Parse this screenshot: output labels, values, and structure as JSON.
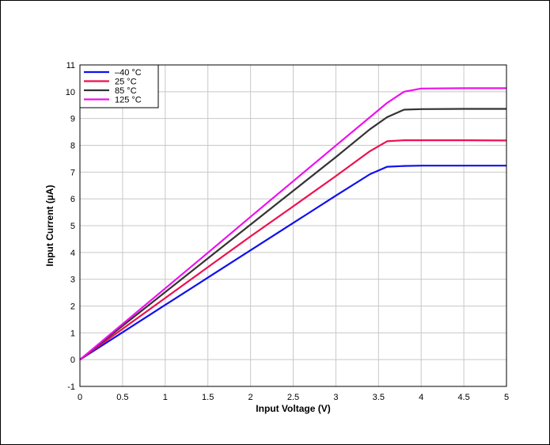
{
  "chart_data": {
    "type": "line",
    "title": "",
    "xlabel": "Input Voltage (V)",
    "ylabel": "Input Current (µA)",
    "xlim": [
      0,
      5
    ],
    "ylim": [
      -1,
      11
    ],
    "xticks": [
      0,
      0.5,
      1,
      1.5,
      2,
      2.5,
      3,
      3.5,
      4,
      4.5,
      5
    ],
    "xtick_labels": [
      "0",
      "0.5",
      "1",
      "1.5",
      "2",
      "2.5",
      "3",
      "3.5",
      "4",
      "4.5",
      "5"
    ],
    "yticks": [
      -1,
      0,
      1,
      2,
      3,
      4,
      5,
      6,
      7,
      8,
      9,
      10,
      11
    ],
    "ytick_labels": [
      "-1",
      "0",
      "1",
      "2",
      "3",
      "4",
      "5",
      "6",
      "7",
      "8",
      "9",
      "10",
      "11"
    ],
    "grid": true,
    "legend_position": "top-left",
    "series": [
      {
        "name": "–40 °C",
        "color": "#1010ee",
        "x": [
          0,
          0.5,
          1,
          1.5,
          2,
          2.5,
          3,
          3.4,
          3.6,
          3.8,
          4,
          4.5,
          5
        ],
        "y": [
          0,
          1.02,
          2.04,
          3.06,
          4.08,
          5.1,
          6.12,
          6.92,
          7.2,
          7.23,
          7.24,
          7.24,
          7.24
        ]
      },
      {
        "name": "25 °C",
        "color": "#ee1050",
        "x": [
          0,
          0.5,
          1,
          1.5,
          2,
          2.5,
          3,
          3.4,
          3.6,
          3.8,
          4,
          4.5,
          5
        ],
        "y": [
          0,
          1.15,
          2.3,
          3.45,
          4.6,
          5.72,
          6.85,
          7.78,
          8.15,
          8.19,
          8.19,
          8.19,
          8.18
        ]
      },
      {
        "name": "85 °C",
        "color": "#333333",
        "x": [
          0,
          0.5,
          1,
          1.5,
          2,
          2.5,
          3,
          3.4,
          3.6,
          3.8,
          4,
          4.5,
          5
        ],
        "y": [
          0,
          1.26,
          2.52,
          3.78,
          5.04,
          6.3,
          7.56,
          8.6,
          9.05,
          9.33,
          9.35,
          9.36,
          9.36
        ]
      },
      {
        "name": "125 °C",
        "color": "#ee10ee",
        "x": [
          0,
          0.5,
          1,
          1.5,
          2,
          2.5,
          3,
          3.4,
          3.6,
          3.8,
          4,
          4.5,
          5
        ],
        "y": [
          0,
          1.33,
          2.66,
          3.99,
          5.33,
          6.66,
          7.99,
          9.05,
          9.58,
          10.0,
          10.12,
          10.13,
          10.13
        ]
      }
    ]
  }
}
